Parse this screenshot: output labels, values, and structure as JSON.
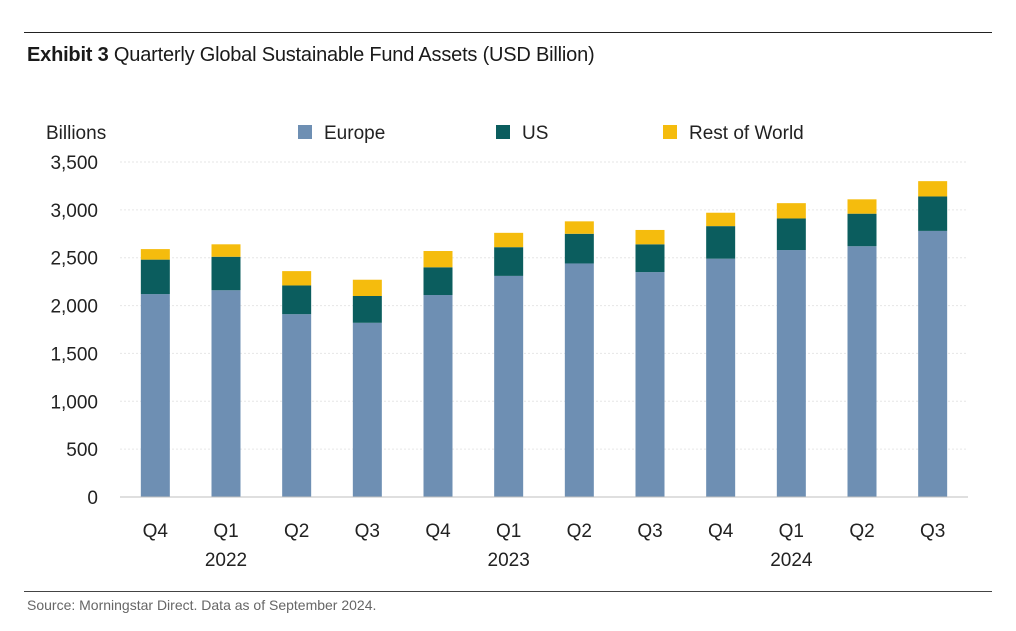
{
  "exhibit": {
    "label": "Exhibit 3",
    "title": "Quarterly Global Sustainable Fund Assets (USD Billion)",
    "source": "Source: Morningstar Direct. Data as of September 2024."
  },
  "chart_data": {
    "type": "bar",
    "stacked": true,
    "title": "Quarterly Global Sustainable Fund Assets (USD Billion)",
    "ylabel": "Billions",
    "xlabel": "",
    "ylim": [
      0,
      3500
    ],
    "yticks": [
      0,
      500,
      1000,
      1500,
      2000,
      2500,
      3000,
      3500
    ],
    "ytick_labels": [
      "0",
      "500",
      "1,000",
      "1,500",
      "2,000",
      "2,500",
      "3,000",
      "3,500"
    ],
    "grid": true,
    "legend_position": "top",
    "categories": [
      "Q4",
      "Q1",
      "Q2",
      "Q3",
      "Q4",
      "Q1",
      "Q2",
      "Q3",
      "Q4",
      "Q1",
      "Q2",
      "Q3"
    ],
    "year_labels": [
      {
        "index": 1,
        "label": "2022"
      },
      {
        "index": 5,
        "label": "2023"
      },
      {
        "index": 9,
        "label": "2024"
      }
    ],
    "series": [
      {
        "name": "Europe",
        "color": "#6e8fb3",
        "values": [
          2120,
          2160,
          1910,
          1820,
          2110,
          2310,
          2440,
          2350,
          2490,
          2580,
          2620,
          2780
        ]
      },
      {
        "name": "US",
        "color": "#0b5d5e",
        "values": [
          360,
          350,
          300,
          280,
          290,
          300,
          310,
          290,
          340,
          330,
          340,
          360
        ]
      },
      {
        "name": "Rest of World",
        "color": "#f5bc0d",
        "values": [
          110,
          130,
          150,
          170,
          170,
          150,
          130,
          150,
          140,
          160,
          150,
          160
        ]
      }
    ]
  }
}
